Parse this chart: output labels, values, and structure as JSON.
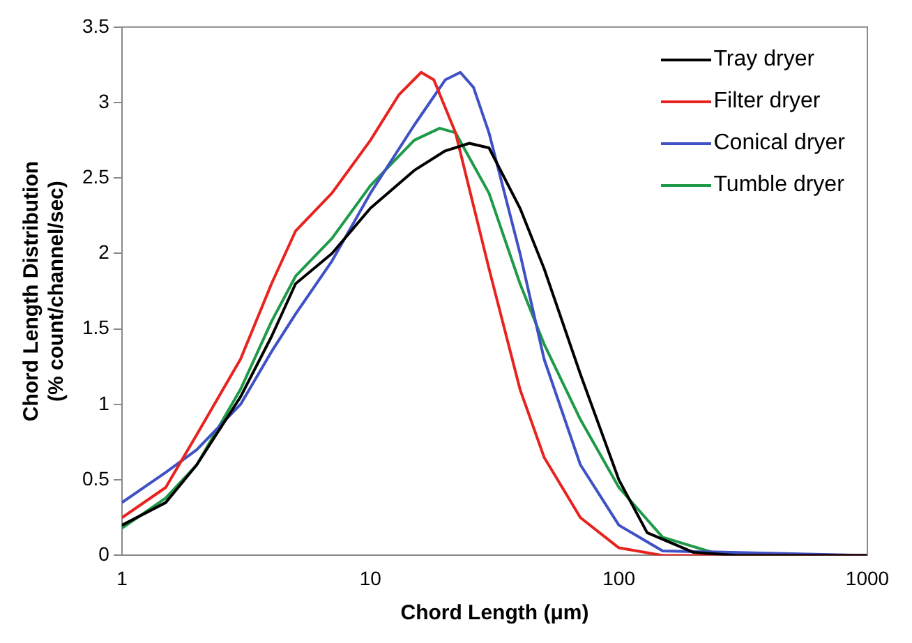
{
  "chart_data": {
    "type": "line",
    "xlabel": "Chord Length (μm)",
    "ylabel": "Chord Length Distribution\n(% count/channel/sec)",
    "log": "x",
    "xlim": [
      1,
      1000
    ],
    "xticks": [
      1,
      10,
      100,
      1000
    ],
    "ylim": [
      0,
      3.5
    ],
    "yticks": [
      0,
      0.5,
      1,
      1.5,
      2,
      2.5,
      3,
      3.5
    ],
    "grid": false,
    "legend": "top right",
    "marker": "none",
    "line_style": "solid",
    "series": [
      {
        "name": "Tray dryer",
        "color": "#000000",
        "x": [
          1,
          1.5,
          2,
          3,
          4,
          5,
          7,
          10,
          15,
          20,
          25,
          30,
          40,
          50,
          70,
          100,
          130,
          200,
          300,
          1000
        ],
        "values": [
          0.2,
          0.35,
          0.6,
          1.05,
          1.45,
          1.8,
          2.0,
          2.3,
          2.55,
          2.68,
          2.73,
          2.7,
          2.3,
          1.9,
          1.2,
          0.5,
          0.15,
          0.02,
          0,
          0
        ]
      },
      {
        "name": "Filter dryer",
        "color": "#e8231f",
        "x": [
          1,
          1.5,
          2,
          3,
          4,
          5,
          7,
          10,
          13,
          16,
          18,
          22,
          30,
          40,
          50,
          70,
          100,
          150,
          1000
        ],
        "values": [
          0.25,
          0.45,
          0.8,
          1.3,
          1.8,
          2.15,
          2.4,
          2.75,
          3.05,
          3.2,
          3.15,
          2.8,
          1.9,
          1.1,
          0.65,
          0.25,
          0.05,
          0,
          0
        ]
      },
      {
        "name": "Conical dryer",
        "color": "#3f51c4",
        "x": [
          1,
          1.5,
          2,
          3,
          4,
          5,
          7,
          10,
          15,
          20,
          23,
          26,
          30,
          40,
          50,
          70,
          100,
          150,
          1000
        ],
        "values": [
          0.35,
          0.55,
          0.7,
          1.0,
          1.35,
          1.6,
          1.95,
          2.4,
          2.85,
          3.15,
          3.2,
          3.1,
          2.8,
          2.0,
          1.3,
          0.6,
          0.2,
          0.03,
          0
        ]
      },
      {
        "name": "Tumble dryer",
        "color": "#1e9a48",
        "x": [
          1,
          1.5,
          2,
          3,
          4,
          5,
          7,
          10,
          15,
          19,
          22,
          30,
          40,
          50,
          70,
          100,
          150,
          250,
          1000
        ],
        "values": [
          0.18,
          0.38,
          0.6,
          1.1,
          1.55,
          1.85,
          2.1,
          2.45,
          2.75,
          2.83,
          2.8,
          2.4,
          1.8,
          1.4,
          0.9,
          0.45,
          0.12,
          0.01,
          0
        ]
      }
    ]
  }
}
